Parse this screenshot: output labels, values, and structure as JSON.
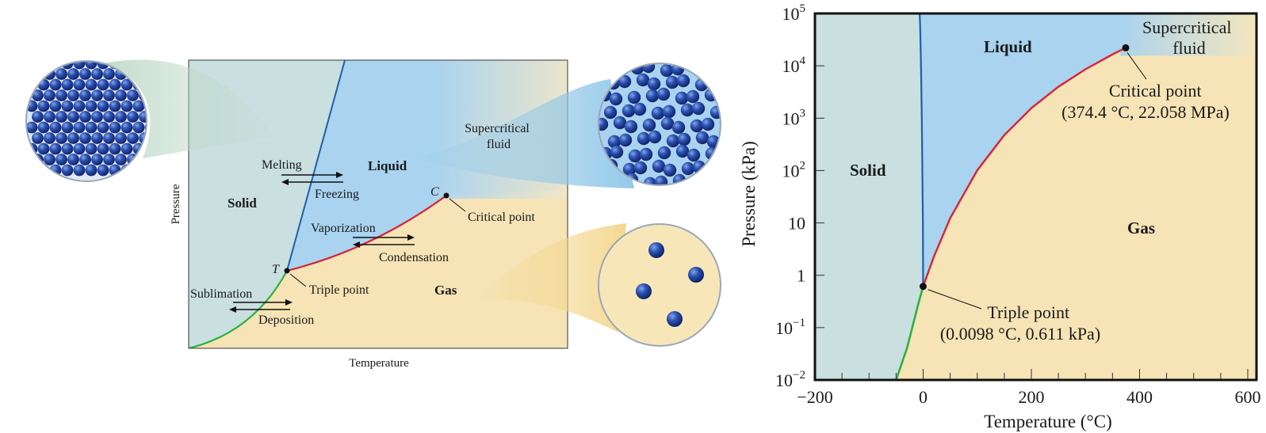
{
  "left_diagram": {
    "axis_x": "Temperature",
    "axis_y": "Pressure",
    "regions": {
      "solid": "Solid",
      "liquid": "Liquid",
      "gas": "Gas",
      "supercritical": "Supercritical fluid"
    },
    "supercritical_lines": [
      "Supercritical",
      "fluid"
    ],
    "points": {
      "triple_letter": "T",
      "triple_label": "Triple point",
      "critical_letter": "C",
      "critical_label": "Critical point"
    },
    "transitions": {
      "melting": "Melting",
      "freezing": "Freezing",
      "vaporization": "Vaporization",
      "condensation": "Condensation",
      "sublimation": "Sublimation",
      "deposition": "Deposition"
    }
  },
  "right_chart": {
    "xlabel": "Temperature (°C)",
    "ylabel": "Pressure (kPa)",
    "x_ticks": [
      "−200",
      "0",
      "200",
      "400",
      "600"
    ],
    "y_ticks": [
      {
        "base": "10",
        "exp": "−2"
      },
      {
        "base": "10",
        "exp": "−1"
      },
      {
        "base": "1",
        "exp": ""
      },
      {
        "base": "10",
        "exp": ""
      },
      {
        "base": "10",
        "exp": "2"
      },
      {
        "base": "10",
        "exp": "3"
      },
      {
        "base": "10",
        "exp": "4"
      },
      {
        "base": "10",
        "exp": "5"
      }
    ],
    "regions": {
      "solid": "Solid",
      "liquid": "Liquid",
      "gas": "Gas"
    },
    "supercritical_lines": [
      "Supercritical",
      "fluid"
    ],
    "critical_point": {
      "label": "Critical point",
      "coords": "(374.4 °C, 22.058 MPa)"
    },
    "triple_point": {
      "label": "Triple point",
      "coords": "(0.0098 °C, 0.611 kPa)"
    }
  },
  "chart_data": {
    "type": "line",
    "xlabel": "Temperature (°C)",
    "ylabel": "Pressure (kPa)",
    "xlim": [
      -200,
      600
    ],
    "ylim": [
      0.01,
      100000
    ],
    "y_scale": "log",
    "series": [
      {
        "x": [
          -50,
          -40,
          -30,
          -20,
          -10,
          0.0098
        ],
        "values": [
          0.01,
          0.02,
          0.04,
          0.1,
          0.26,
          0.611
        ]
      },
      {
        "x": [
          0.0098,
          20,
          50,
          100,
          150,
          200,
          250,
          300,
          350,
          374.4
        ],
        "values": [
          0.611,
          2.3,
          12.3,
          101.3,
          476,
          1555,
          3976,
          8588,
          16530,
          22058
        ]
      },
      {
        "x": [
          0.0098,
          -0.5,
          -1.5,
          -2.5,
          -4,
          -5.5,
          -6.5
        ],
        "values": [
          0.611,
          10,
          100,
          1000,
          10000,
          60000,
          100000
        ]
      }
    ],
    "points": [
      {
        "name": "Triple point",
        "x": 0.0098,
        "y": 0.611
      },
      {
        "name": "Critical point",
        "x": 374.4,
        "y": 22058
      }
    ],
    "colors": {
      "solid": "#c9dfe0",
      "liquid": "#a9d3ef",
      "gas": "#f6e4b6",
      "fusion_curve": "#1f5fa8",
      "vapor_curve": "#d8233a",
      "sublimation_curve": "#2db043"
    }
  }
}
